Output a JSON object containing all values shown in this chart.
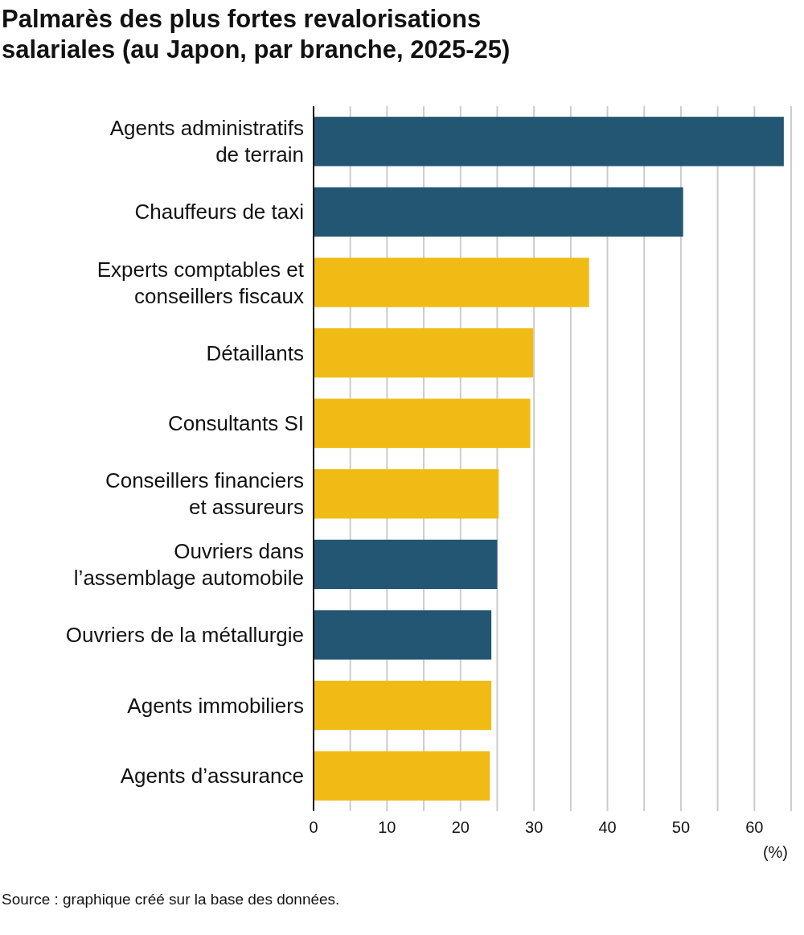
{
  "chart_data": {
    "type": "bar",
    "orientation": "horizontal",
    "title": "Palmarès des plus fortes revalorisations salariales (au Japon, par branche, 2025-25)",
    "categories": [
      "Agents administratifs de terrain",
      "Chauffeurs de taxi",
      "Experts comptables et conseillers fiscaux",
      "Détaillants",
      "Consultants SI",
      "Conseillers financiers et assureurs",
      "Ouvriers dans l’assemblage automobile",
      "Ouvriers de la métallurgie",
      "Agents immobiliers",
      "Agents d’assurance"
    ],
    "values": [
      64.0,
      50.3,
      37.5,
      29.9,
      29.5,
      25.2,
      25.0,
      24.2,
      24.2,
      24.0
    ],
    "colors": [
      "#235673",
      "#235673",
      "#f0bb15",
      "#f0bb15",
      "#f0bb15",
      "#f0bb15",
      "#235673",
      "#235673",
      "#f0bb15",
      "#f0bb15"
    ],
    "xlim": [
      0,
      65
    ],
    "xticks": [
      0,
      {
        "value": 5,
        "label": null
      },
      10,
      {
        "value": 15,
        "label": null
      },
      20,
      {
        "value": 25,
        "label": null
      },
      30,
      {
        "value": 35,
        "label": null
      },
      40,
      {
        "value": 45,
        "label": null
      },
      50,
      {
        "value": 55,
        "label": null
      },
      60,
      {
        "value": 65,
        "label": null
      }
    ],
    "xlabel": "(%)",
    "grid": "x",
    "annotations": [
      "Source : graphique créé sur la base des données."
    ]
  }
}
